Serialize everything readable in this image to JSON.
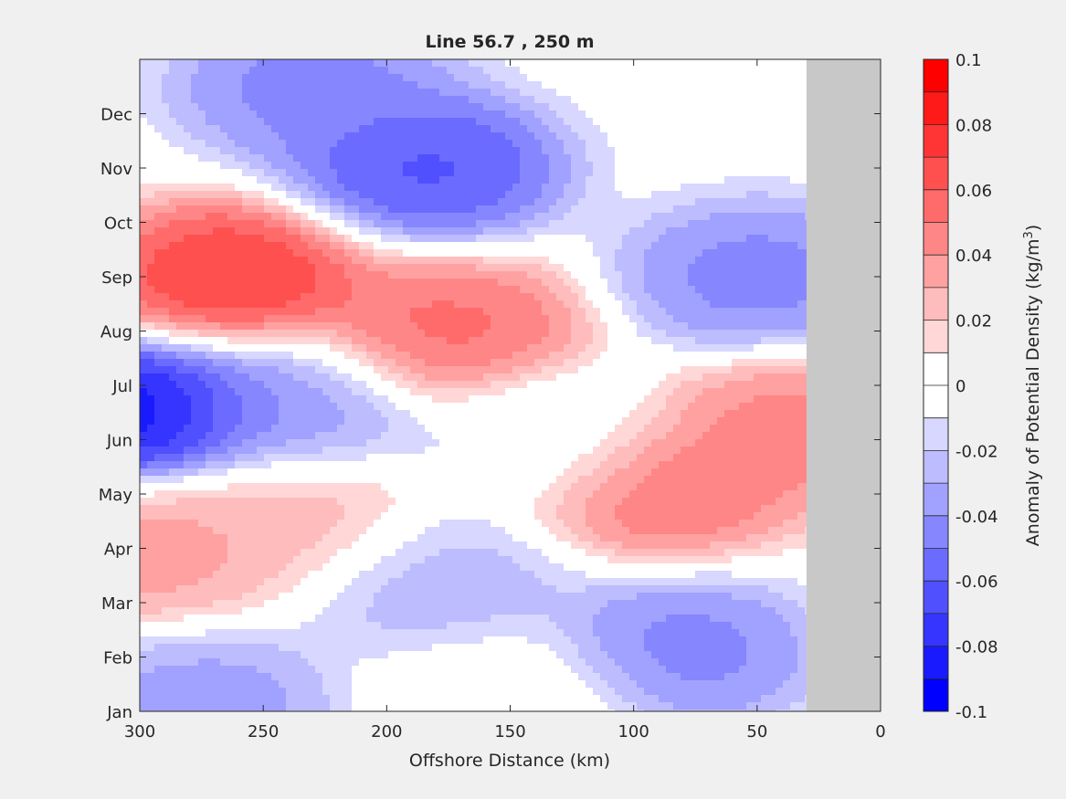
{
  "chart_data": {
    "type": "heatmap",
    "subtype": "filled-contour",
    "title": "Line 56.7 , 250 m",
    "xlabel": "Offshore Distance (km)",
    "ylabel": "",
    "xlim": [
      300,
      0
    ],
    "x_direction": "reversed",
    "x_ticks": [
      300,
      250,
      200,
      150,
      100,
      50,
      0
    ],
    "y_ticks": [
      "Jan",
      "Feb",
      "Mar",
      "Apr",
      "May",
      "Jun",
      "Jul",
      "Aug",
      "Sep",
      "Oct",
      "Nov",
      "Dec"
    ],
    "colorbar": {
      "label_main": "Anomaly of Potential Density (kg/m",
      "label_sup": "3",
      "label_end": ")",
      "range": [
        -0.1,
        0.1
      ],
      "tick_labels": [
        "-0.1",
        "-0.08",
        "-0.06",
        "-0.04",
        "-0.02",
        "0",
        "0.02",
        "0.04",
        "0.06",
        "0.08",
        "0.1"
      ],
      "tick_values": [
        -0.1,
        -0.08,
        -0.06,
        -0.04,
        -0.02,
        0,
        0.02,
        0.04,
        0.06,
        0.08,
        0.1
      ],
      "colors": [
        "#0000ff",
        "#1a1aff",
        "#3535ff",
        "#5050ff",
        "#6b6bff",
        "#8686ff",
        "#a1a1ff",
        "#bcbcff",
        "#d7d7ff",
        "#ffffff",
        "#ffffff",
        "#ffd7d7",
        "#ffbcbc",
        "#ffa1a1",
        "#ff8686",
        "#ff6b6b",
        "#ff5050",
        "#ff3535",
        "#ff1a1a",
        "#ff0000"
      ]
    },
    "no_data_region_km": [
      30,
      0
    ],
    "no_data_color": "#c8c8c8",
    "features": [
      {
        "kind": "max",
        "x_km": 262,
        "month": 9.0,
        "value": 0.08
      },
      {
        "kind": "max",
        "x_km": 175,
        "month": 8.0,
        "value": 0.06
      },
      {
        "kind": "max",
        "x_km": 90,
        "month": 5.2,
        "value": 0.06
      },
      {
        "kind": "max",
        "x_km": 35,
        "month": 6.2,
        "value": 0.05
      },
      {
        "kind": "max",
        "x_km": 297,
        "month": 4.0,
        "value": 0.04
      },
      {
        "kind": "max",
        "x_km": 240,
        "month": 4.5,
        "value": 0.03
      },
      {
        "kind": "max",
        "x_km": 150,
        "month": 1.2,
        "value": 0.01
      },
      {
        "kind": "min",
        "x_km": 185,
        "month": 11.0,
        "value": -0.07
      },
      {
        "kind": "min",
        "x_km": 300,
        "month": 6.5,
        "value": -0.1
      },
      {
        "kind": "min",
        "x_km": 240,
        "month": 6.6,
        "value": -0.04
      },
      {
        "kind": "min",
        "x_km": 82,
        "month": 2.1,
        "value": -0.05
      },
      {
        "kind": "min",
        "x_km": 50,
        "month": 9.0,
        "value": -0.05
      },
      {
        "kind": "min",
        "x_km": 275,
        "month": 1.1,
        "value": -0.04
      },
      {
        "kind": "min",
        "x_km": 180,
        "month": 3.3,
        "value": -0.03
      },
      {
        "kind": "min",
        "x_km": 230,
        "month": 12.5,
        "value": -0.05
      },
      {
        "kind": "min",
        "x_km": 133,
        "month": 6.0,
        "value": -0.015
      }
    ]
  }
}
